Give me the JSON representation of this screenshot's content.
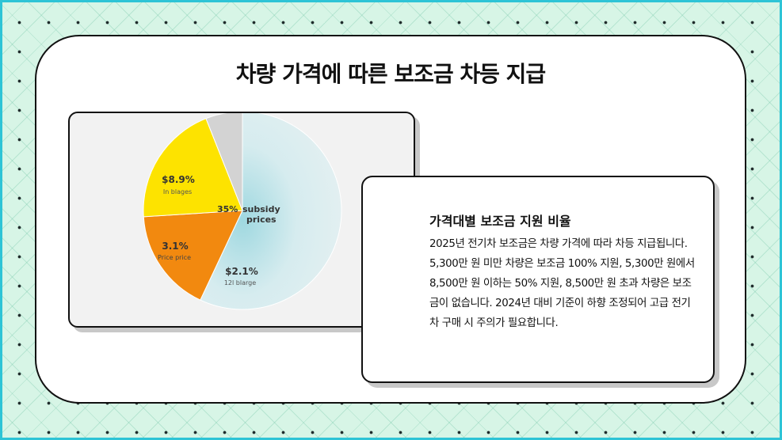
{
  "title": "차량 가격에 따른 보조금 차등 지급",
  "chart_data": {
    "type": "pie",
    "slices": [
      {
        "value": 57,
        "color": "#dcedf0"
      },
      {
        "value": 17,
        "color": "#f2890f"
      },
      {
        "value": 20,
        "color": "#fde300"
      },
      {
        "value": 6,
        "color": "#d3d3d3"
      }
    ],
    "labels": [
      {
        "value": "$8.9%",
        "sub": "In blages"
      },
      {
        "value": "35%",
        "text": "subsidy prices"
      },
      {
        "value": "3.1%",
        "sub": "Price price"
      },
      {
        "value": "$2.1%",
        "sub": "12l blarge"
      }
    ]
  },
  "info": {
    "heading": "가격대별 보조금 지원 비율",
    "body": "2025년 전기차 보조금은 차량 가격에 따라 차등 지급됩니다. 5,300만 원 미만 차량은 보조금 100% 지원, 5,300만 원에서 8,500만 원 이하는 50% 지원, 8,500만 원 초과 차량은 보조금이 없습니다. 2024년 대비 기준이 하향 조정되어 고급 전기차 구매 시 주의가 필요합니다."
  }
}
